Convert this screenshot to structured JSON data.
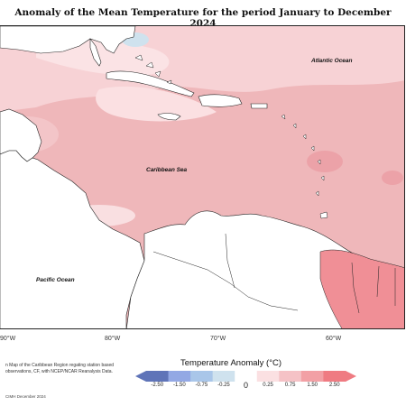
{
  "title": "Anomaly of the Mean Temperature for the period January to December 2024",
  "map": {
    "oceans": [
      "Atlantic Ocean",
      "Caribbean Sea",
      "Pacific Ocean"
    ],
    "longitude_labels": [
      "90°W",
      "80°W",
      "70°W",
      "60°W"
    ]
  },
  "legend": {
    "title": "Temperature Anomaly (°C)",
    "ticks": [
      "-2.50",
      "-1.50",
      "-0.75",
      "-0.25",
      "0",
      "0.25",
      "0.75",
      "1.50",
      "2.50"
    ],
    "colors": [
      "#5f74b8",
      "#93a8e4",
      "#a9c6e9",
      "#cfe2ee",
      "#ffffff",
      "#fbe0e2",
      "#f5c2c6",
      "#f2a0a5",
      "#ef7b82"
    ]
  },
  "credit": {
    "text": "n Map of the Caribbean Region regating station based observations, CF, with NCEP/NCAR Reanalysis Data.",
    "date": "CIMH December 2024"
  }
}
